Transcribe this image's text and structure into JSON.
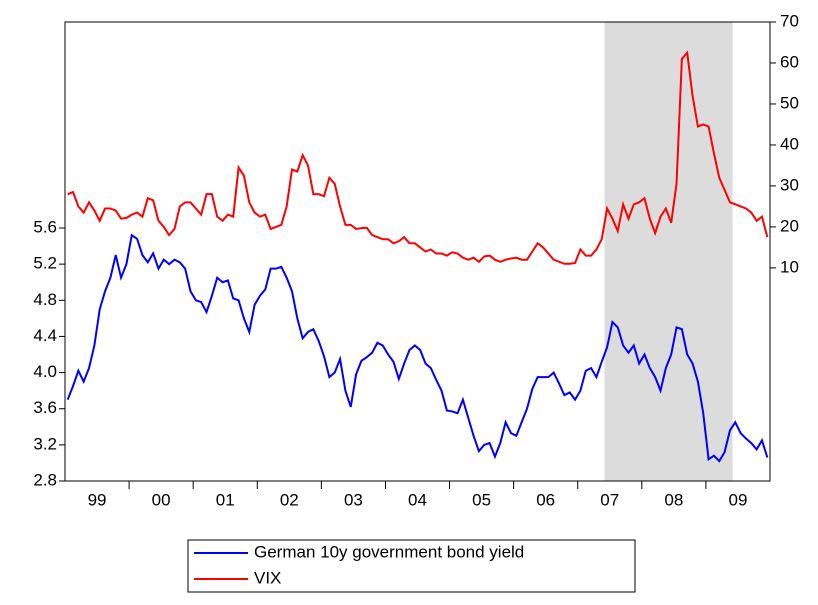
{
  "chart_data": {
    "type": "line",
    "categories": [
      null,
      null,
      null,
      null,
      null,
      "99",
      null,
      null,
      null,
      null,
      null,
      null,
      null,
      null,
      null,
      null,
      null,
      "00",
      null,
      null,
      null,
      null,
      null,
      null,
      null,
      null,
      null,
      null,
      null,
      "01",
      null,
      null,
      null,
      null,
      null,
      null,
      null,
      null,
      null,
      null,
      null,
      "02",
      null,
      null,
      null,
      null,
      null,
      null,
      null,
      null,
      null,
      null,
      null,
      "03",
      null,
      null,
      null,
      null,
      null,
      null,
      null,
      null,
      null,
      null,
      null,
      "04",
      null,
      null,
      null,
      null,
      null,
      null,
      null,
      null,
      null,
      null,
      null,
      "05",
      null,
      null,
      null,
      null,
      null,
      null,
      null,
      null,
      null,
      null,
      null,
      "06",
      null,
      null,
      null,
      null,
      null,
      null,
      null,
      null,
      null,
      null,
      null,
      "07",
      null,
      null,
      null,
      null,
      null,
      null,
      null,
      null,
      null,
      null,
      null,
      "08",
      null,
      null,
      null,
      null,
      null,
      null,
      null,
      null,
      null,
      null,
      null,
      "09",
      null,
      null,
      null,
      null,
      null,
      null
    ],
    "series": [
      {
        "name": "German 10y government bond yield",
        "color": "#0000ff",
        "values": [
          3.7,
          3.85,
          4.02,
          3.9,
          4.05,
          4.3,
          4.7,
          4.9,
          5.05,
          5.3,
          5.05,
          5.2,
          5.52,
          5.48,
          5.3,
          5.22,
          5.32,
          5.15,
          5.25,
          5.2,
          5.25,
          5.22,
          5.15,
          4.9,
          4.8,
          4.78,
          4.67,
          4.85,
          5.05,
          5.0,
          5.02,
          4.82,
          4.8,
          4.6,
          4.45,
          4.75,
          4.85,
          4.92,
          5.15,
          5.15,
          5.17,
          5.05,
          4.9,
          4.6,
          4.38,
          4.45,
          4.48,
          4.35,
          4.18,
          3.95,
          4.0,
          4.15,
          3.8,
          3.62,
          3.98,
          4.13,
          4.17,
          4.22,
          4.33,
          4.3,
          4.2,
          4.12,
          3.93,
          4.1,
          4.25,
          4.3,
          4.25,
          4.1,
          4.05,
          3.92,
          3.8,
          3.58,
          3.57,
          3.55,
          3.7,
          3.5,
          3.3,
          3.13,
          3.2,
          3.22,
          3.07,
          3.22,
          3.45,
          3.33,
          3.3,
          3.45,
          3.6,
          3.82,
          3.95,
          3.95,
          3.95,
          4.0,
          3.88,
          3.75,
          3.78,
          3.7,
          3.8,
          4.02,
          4.05,
          3.95,
          4.12,
          4.28,
          4.56,
          4.5,
          4.3,
          4.22,
          4.3,
          4.1,
          4.2,
          4.05,
          3.95,
          3.8,
          4.05,
          4.2,
          4.5,
          4.48,
          4.2,
          4.1,
          3.9,
          3.55,
          3.04,
          3.08,
          3.02,
          3.12,
          3.36,
          3.45,
          3.33,
          3.27,
          3.22,
          3.15,
          3.25,
          3.06
        ]
      },
      {
        "name": "VIX",
        "color": "#ff0000",
        "axis": "y2",
        "values": [
          28,
          28.5,
          25,
          23.5,
          26,
          24,
          21.5,
          24.5,
          24.5,
          24,
          22,
          22.2,
          23,
          23.5,
          22.5,
          27,
          26.5,
          21.5,
          20,
          18,
          19.5,
          25,
          26,
          26,
          24.5,
          23,
          28,
          28,
          22.5,
          21.5,
          23,
          22.5,
          34.5,
          32.5,
          26,
          23.5,
          22.5,
          23,
          19.5,
          20,
          20.5,
          25,
          34,
          33.5,
          37.5,
          35,
          28,
          28,
          27.5,
          32,
          30.5,
          25,
          20.5,
          20.5,
          19.5,
          19.7,
          19.8,
          18,
          17.5,
          17,
          17,
          16,
          16.5,
          17.5,
          16,
          16,
          15,
          14,
          14.5,
          13.5,
          13.5,
          13,
          13.8,
          13.5,
          12.5,
          12,
          12.5,
          11.5,
          12.8,
          13,
          12,
          11.5,
          12,
          12.3,
          12.5,
          12,
          12,
          14,
          16,
          15,
          13.5,
          12,
          11.5,
          11,
          11,
          11.2,
          14.5,
          13,
          13,
          14.5,
          17,
          24.5,
          22,
          19,
          25.5,
          22,
          25.5,
          26,
          27,
          22,
          18.5,
          22.5,
          24.5,
          21,
          30.5,
          61,
          62.5,
          52,
          44.5,
          45,
          44.5,
          38,
          32,
          29,
          26,
          25.5,
          25,
          24.5,
          23.5,
          21.5,
          22.5,
          17.5
        ]
      }
    ],
    "ylim": [
      2.8,
      7.88
    ],
    "yticks": [
      2.8,
      3.2,
      3.6,
      {
        "value": 4,
        "label": "4.0"
      },
      4.4,
      4.8,
      5.2,
      5.6
    ],
    "y2lim": [
      -42,
      70
    ],
    "y2ticks": [
      10,
      20,
      30,
      40,
      50,
      60,
      70
    ],
    "shade": {
      "from": 101,
      "to": 124
    },
    "shade_color": "#dcdcdc"
  }
}
